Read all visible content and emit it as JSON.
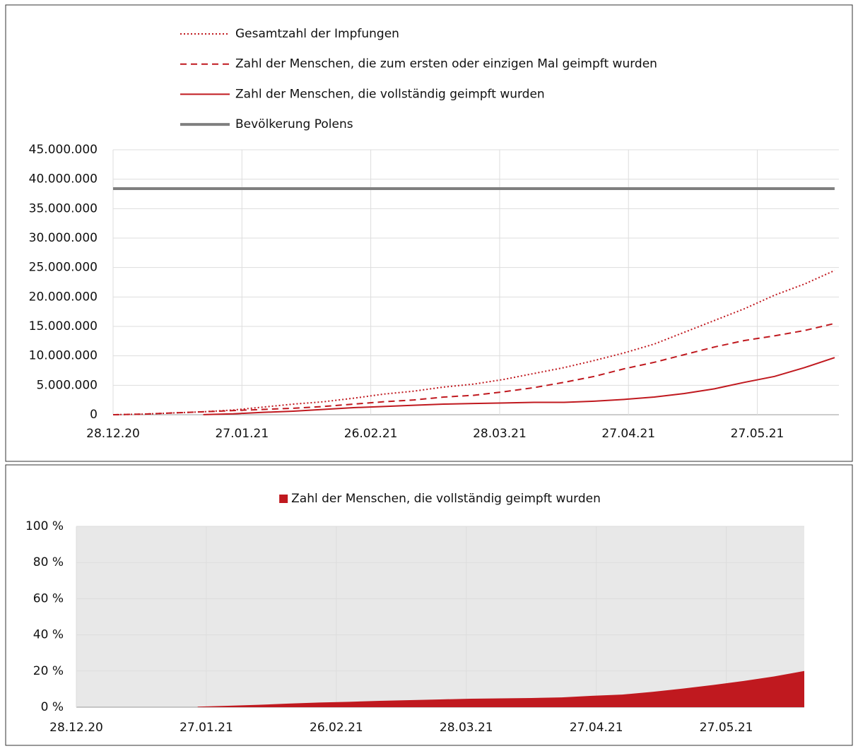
{
  "chart_data": [
    {
      "type": "line",
      "x": [
        "28.12.20",
        "04.01.21",
        "11.01.21",
        "18.01.21",
        "25.01.21",
        "01.02.21",
        "08.02.21",
        "15.02.21",
        "22.02.21",
        "01.03.21",
        "08.03.21",
        "15.03.21",
        "22.03.21",
        "29.03.21",
        "05.04.21",
        "12.04.21",
        "19.04.21",
        "26.04.21",
        "03.05.21",
        "10.05.21",
        "17.05.21",
        "24.05.21",
        "31.05.21",
        "07.06.21",
        "14.06.21"
      ],
      "series": [
        {
          "name": "Gesamtzahl der Impfungen",
          "color": "#c0191f",
          "style": "dotted",
          "values": [
            0,
            100000,
            300000,
            500000,
            800000,
            1300000,
            1800000,
            2200000,
            2800000,
            3500000,
            4000000,
            4700000,
            5200000,
            6000000,
            7000000,
            8000000,
            9200000,
            10500000,
            12000000,
            14000000,
            16000000,
            18000000,
            20300000,
            22200000,
            24500000
          ]
        },
        {
          "name": "Zahl der Menschen, die zum ersten oder einzigen Mal geimpft wurden",
          "color": "#c0191f",
          "style": "dashed",
          "values": [
            0,
            100000,
            300000,
            500000,
            700000,
            900000,
            1100000,
            1400000,
            1800000,
            2200000,
            2500000,
            3000000,
            3300000,
            3900000,
            4600000,
            5500000,
            6500000,
            7800000,
            8900000,
            10200000,
            11500000,
            12600000,
            13400000,
            14300000,
            15500000
          ]
        },
        {
          "name": "Zahl der Menschen, die vollständig geimpft wurden",
          "color": "#c0191f",
          "style": "solid",
          "values": [
            null,
            null,
            null,
            20000,
            150000,
            400000,
            600000,
            900000,
            1200000,
            1400000,
            1600000,
            1800000,
            1900000,
            2000000,
            2100000,
            2100000,
            2300000,
            2600000,
            3000000,
            3600000,
            4400000,
            5500000,
            6500000,
            8000000,
            9700000
          ]
        },
        {
          "name": "Bevölkerung Polens",
          "color": "#7f7f7f",
          "style": "thick",
          "values": [
            38400000,
            38400000,
            38400000,
            38400000,
            38400000,
            38400000,
            38400000,
            38400000,
            38400000,
            38400000,
            38400000,
            38400000,
            38400000,
            38400000,
            38400000,
            38400000,
            38400000,
            38400000,
            38400000,
            38400000,
            38400000,
            38400000,
            38400000,
            38400000,
            38400000
          ]
        }
      ],
      "xlim": [
        "28.12.20",
        "15.06.21"
      ],
      "xticks": [
        "28.12.20",
        "27.01.21",
        "26.02.21",
        "28.03.21",
        "27.04.21",
        "27.05.21"
      ],
      "ylim": [
        0,
        45000000
      ],
      "yticks": [
        0,
        {
          "value": 5000000,
          "label": "5.000.000"
        },
        {
          "value": 10000000,
          "label": "10.000.000"
        },
        {
          "value": 15000000,
          "label": "15.000.000"
        },
        {
          "value": 20000000,
          "label": "20.000.000"
        },
        {
          "value": 25000000,
          "label": "25.000.000"
        },
        {
          "value": 30000000,
          "label": "30.000.000"
        },
        {
          "value": 35000000,
          "label": "35.000.000"
        },
        {
          "value": 40000000,
          "label": "40.000.000"
        },
        {
          "value": 45000000,
          "label": "45.000.000"
        }
      ],
      "grid": true,
      "legend": "top"
    },
    {
      "type": "area",
      "x": [
        "28.12.20",
        "04.01.21",
        "11.01.21",
        "18.01.21",
        "25.01.21",
        "01.02.21",
        "08.02.21",
        "15.02.21",
        "22.02.21",
        "01.03.21",
        "08.03.21",
        "15.03.21",
        "22.03.21",
        "29.03.21",
        "05.04.21",
        "12.04.21",
        "19.04.21",
        "26.04.21",
        "03.05.21",
        "10.05.21",
        "17.05.21",
        "24.05.21",
        "31.05.21",
        "07.06.21",
        "14.06.21"
      ],
      "series": [
        {
          "name": "Zahl der Menschen, die vollständig geimpft wurden",
          "color": "#c0191f",
          "values": [
            null,
            null,
            null,
            null,
            0.3,
            0.8,
            1.3,
            2.0,
            2.6,
            3.0,
            3.5,
            3.9,
            4.3,
            4.7,
            4.9,
            5.1,
            5.4,
            6.3,
            7.0,
            8.5,
            10.3,
            12.3,
            14.5,
            17.0,
            20.0
          ]
        }
      ],
      "xlim": [
        "28.12.20",
        "14.06.21"
      ],
      "xticks": [
        "28.12.20",
        "27.01.21",
        "26.02.21",
        "28.03.21",
        "27.04.21",
        "27.05.21"
      ],
      "ylim": [
        0,
        100
      ],
      "yticks": [
        {
          "value": 0,
          "label": "0 %"
        },
        {
          "value": 20,
          "label": "20 %"
        },
        {
          "value": 40,
          "label": "40 %"
        },
        {
          "value": 60,
          "label": "60 %"
        },
        {
          "value": 80,
          "label": "80 %"
        },
        {
          "value": 100,
          "label": "100 %"
        }
      ],
      "grid": true,
      "legend": "top",
      "plot_background": "#e8e8e8"
    }
  ]
}
